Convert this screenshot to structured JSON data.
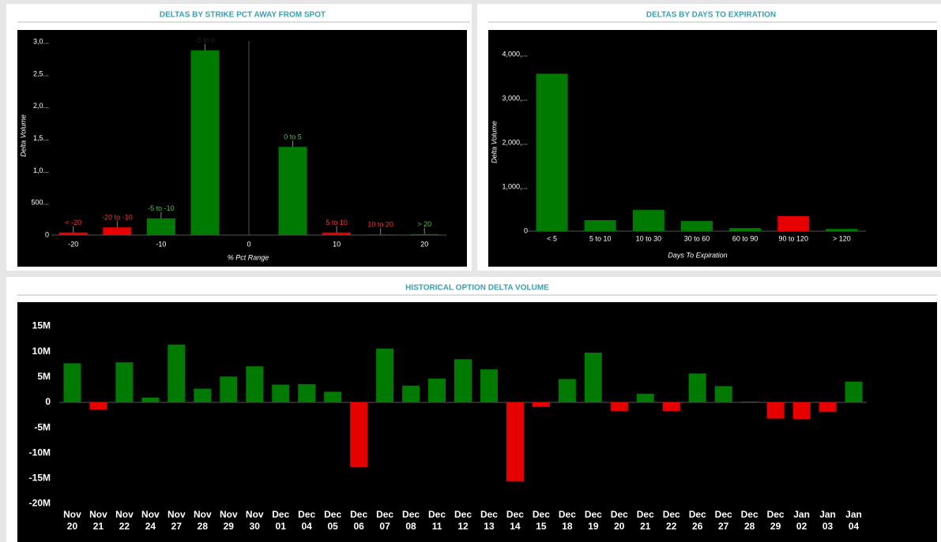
{
  "chart_data": [
    {
      "type": "bar",
      "title": "DELTAS BY STRIKE PCT AWAY FROM SPOT",
      "x_label": "% Pct Range",
      "y_label": "Delta Volume",
      "x": [
        -20,
        -15,
        -10,
        -5,
        5,
        10,
        15,
        20
      ],
      "labels": [
        "< -20",
        "-20 to -10",
        "-5 to -10",
        "-5 to 0",
        "0 to 5",
        "5 to 10",
        "10 to 20",
        "> 20"
      ],
      "values": [
        40,
        120,
        260,
        2870,
        1370,
        40,
        10,
        15
      ],
      "colors": [
        "#e60000",
        "#e60000",
        "#007a00",
        "#007a00",
        "#007a00",
        "#e60000",
        "#e60000",
        "#007a00"
      ],
      "xlim": [
        -22.5,
        22.5
      ],
      "xticks": [
        -20,
        -10,
        0,
        10,
        20
      ],
      "ylim": [
        0,
        3100
      ],
      "yticks": [
        0,
        {
          "value": 500,
          "label": "500..."
        },
        {
          "value": 1000,
          "label": "1,0..."
        },
        {
          "value": 1500,
          "label": "1,5..."
        },
        {
          "value": 2000,
          "label": "2,0..."
        },
        {
          "value": 2500,
          "label": "2,5..."
        },
        {
          "value": 3000,
          "label": "3,0..."
        }
      ]
    },
    {
      "type": "bar",
      "title": "DELTAS BY DAYS TO EXPIRATION",
      "x_label": "Days To Expiration",
      "y_label": "Delta Volume",
      "categories": [
        "< 5",
        "5 to 10",
        "10 to 30",
        "30 to 60",
        "60 to 90",
        "90 to 120",
        "> 120"
      ],
      "values": [
        3570,
        250,
        480,
        230,
        70,
        340,
        50
      ],
      "colors": [
        "#007a00",
        "#007a00",
        "#007a00",
        "#007a00",
        "#007a00",
        "#e60000",
        "#007a00"
      ],
      "ylim": [
        0,
        4400
      ],
      "yticks": [
        0,
        {
          "value": 1000,
          "label": "1,000,..."
        },
        {
          "value": 2000,
          "label": "2,000,..."
        },
        {
          "value": 3000,
          "label": "3,000,..."
        },
        {
          "value": 4000,
          "label": "4,000,..."
        }
      ]
    },
    {
      "type": "bar",
      "title": "HISTORICAL OPTION DELTA VOLUME",
      "categories": [
        "Nov 20",
        "Nov 21",
        "Nov 22",
        "Nov 24",
        "Nov 27",
        "Nov 28",
        "Nov 29",
        "Nov 30",
        "Dec 01",
        "Dec 04",
        "Dec 05",
        "Dec 06",
        "Dec 07",
        "Dec 08",
        "Dec 11",
        "Dec 12",
        "Dec 13",
        "Dec 14",
        "Dec 15",
        "Dec 18",
        "Dec 19",
        "Dec 20",
        "Dec 21",
        "Dec 22",
        "Dec 26",
        "Dec 27",
        "Dec 28",
        "Dec 29",
        "Jan 02",
        "Jan 03",
        "Jan 04"
      ],
      "values": [
        7700000,
        -1400000,
        7900000,
        950000,
        11400000,
        2700000,
        5100000,
        7100000,
        3500000,
        3600000,
        2100000,
        -12800000,
        10600000,
        3300000,
        4700000,
        8500000,
        6500000,
        -15600000,
        -900000,
        4600000,
        9800000,
        -1700000,
        1700000,
        -1700000,
        5700000,
        3200000,
        150000,
        -3200000,
        -3300000,
        -1900000,
        4100000
      ],
      "positive_color": "#007a00",
      "negative_color": "#e60000",
      "ylim": [
        -21000000,
        17500000
      ],
      "yticks": [
        {
          "value": -20000000,
          "label": "-20M"
        },
        {
          "value": -15000000,
          "label": "-15M"
        },
        {
          "value": -10000000,
          "label": "-10M"
        },
        {
          "value": -5000000,
          "label": "-5M"
        },
        0,
        {
          "value": 5000000,
          "label": "5M"
        },
        {
          "value": 10000000,
          "label": "10M"
        },
        {
          "value": 15000000,
          "label": "15M"
        }
      ]
    }
  ]
}
